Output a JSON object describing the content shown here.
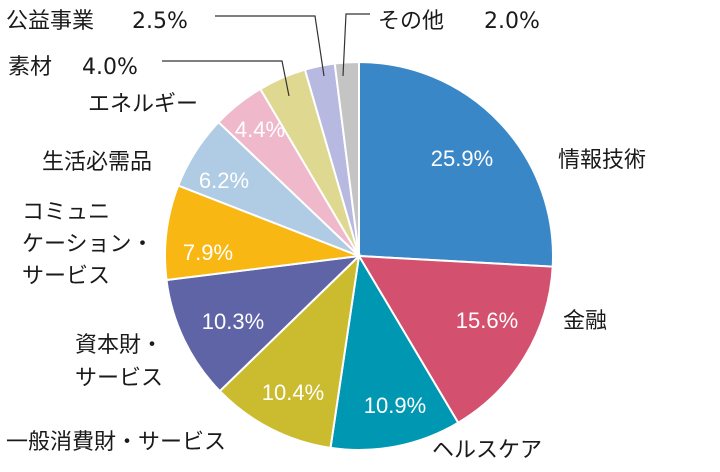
{
  "chart_data": {
    "type": "pie",
    "title": "",
    "start": "12 o'clock, clockwise",
    "slices": [
      {
        "label": "情報技術",
        "label_lines": [
          "情報技術"
        ],
        "value": 25.9,
        "text": "25.9%",
        "color": "#3a87c8"
      },
      {
        "label": "金融",
        "label_lines": [
          "金融"
        ],
        "value": 15.6,
        "text": "15.6%",
        "color": "#d4506f"
      },
      {
        "label": "ヘルスケア",
        "label_lines": [
          "ヘルスケア"
        ],
        "value": 10.9,
        "text": "10.9%",
        "color": "#0097b2"
      },
      {
        "label": "一般消費財・サービス",
        "label_lines": [
          "一般消費財・サービス"
        ],
        "value": 10.4,
        "text": "10.4%",
        "color": "#cbbb2f"
      },
      {
        "label": "資本財・サービス",
        "label_lines": [
          "資本財・",
          "サービス"
        ],
        "value": 10.3,
        "text": "10.3%",
        "color": "#5e64a6"
      },
      {
        "label": "コミュニケーション・サービス",
        "label_lines": [
          "コミュニ",
          "ケーション・",
          "サービス"
        ],
        "value": 7.9,
        "text": "7.9%",
        "color": "#f8b712"
      },
      {
        "label": "生活必需品",
        "label_lines": [
          "生活必需品"
        ],
        "value": 6.2,
        "text": "6.2%",
        "color": "#b0cbe4"
      },
      {
        "label": "エネルギー",
        "label_lines": [
          "エネルギー"
        ],
        "value": 4.4,
        "text": "4.4%",
        "color": "#efb8cb"
      },
      {
        "label": "素材",
        "label_lines": [
          "素材"
        ],
        "value": 4.0,
        "text": "4.0%",
        "color": "#ded890"
      },
      {
        "label": "公益事業",
        "label_lines": [
          "公益事業"
        ],
        "value": 2.5,
        "text": "2.5%",
        "color": "#b8b9e0"
      },
      {
        "label": "その他",
        "label_lines": [
          "その他"
        ],
        "value": 2.0,
        "text": "2.0%",
        "color": "#c4c4c4"
      }
    ]
  }
}
